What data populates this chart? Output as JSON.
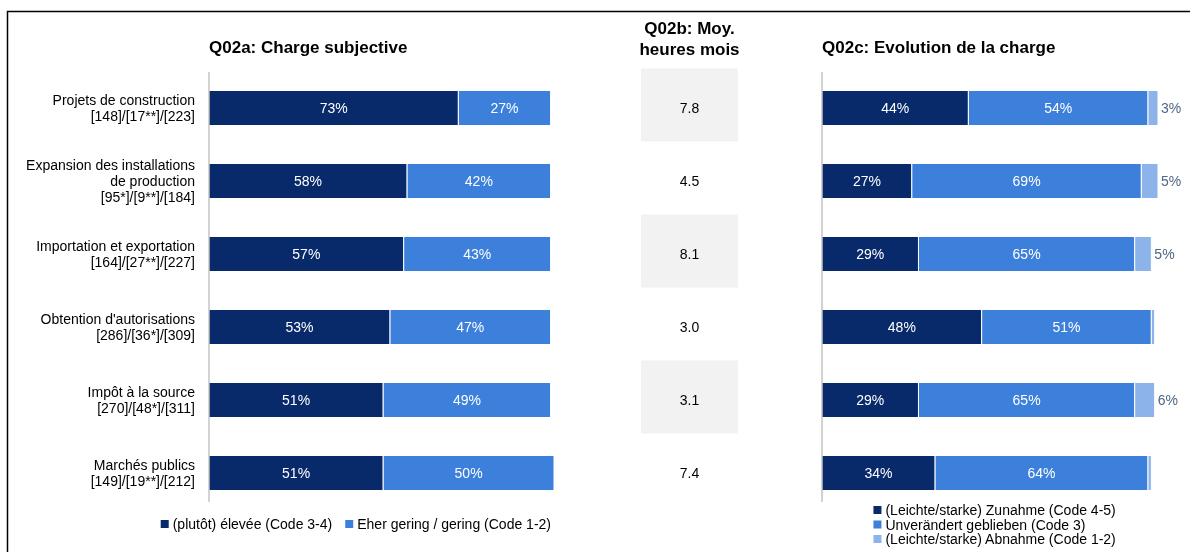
{
  "chart_data": [
    {
      "type": "bar",
      "orientation": "horizontal",
      "stacked": true,
      "title": "Q02a: Charge subjective",
      "categories": [
        "Projets de construction\n[148]/[17**]/[223]",
        "Expansion des installations\nde production\n[95*]/[9**]/[184]",
        "Importation et exportation\n[164]/[27**]/[227]",
        "Obtention d'autorisations\n[286]/[36*]/[309]",
        "Impôt à la source\n[270]/[48*]/[311]",
        "Marchés publics\n[149]/[19**]/[212]"
      ],
      "series": [
        {
          "name": "(plutôt) élevée (Code 3-4)",
          "color": "#082a6b",
          "values": [
            73,
            58,
            57,
            53,
            51,
            51
          ],
          "value_labels": [
            "73%",
            "58%",
            "57%",
            "53%",
            "51%",
            "51%"
          ]
        },
        {
          "name": "Eher gering / gering (Code 1-2)",
          "color": "#3c80dc",
          "values": [
            27,
            42,
            43,
            47,
            49,
            50
          ],
          "value_labels": [
            "27%",
            "42%",
            "43%",
            "47%",
            "49%",
            "50%"
          ]
        }
      ],
      "legend": "bottom"
    },
    {
      "type": "other",
      "title": "Q02b: Moy. heures mois",
      "values": [
        7.8,
        4.5,
        8.1,
        3.0,
        3.1,
        7.4
      ],
      "value_labels": [
        "7.8",
        "4.5",
        "8.1",
        "3.0",
        "3.1",
        "7.4"
      ],
      "colors": [
        "#f2f2f2",
        null,
        "#f2f2f2",
        null,
        "#f2f2f2",
        null
      ]
    },
    {
      "type": "bar",
      "orientation": "horizontal",
      "stacked": true,
      "title": "Q02c: Evolution de la charge",
      "series": [
        {
          "name": "(Leichte/starke) Zunahme (Code 4-5)",
          "color": "#082a6b",
          "values": [
            44,
            27,
            29,
            48,
            29,
            34
          ],
          "value_labels": [
            "44%",
            "27%",
            "29%",
            "48%",
            "29%",
            "34%"
          ]
        },
        {
          "name": "Unverändert geblieben (Code 3)",
          "color": "#3c80dc",
          "values": [
            54,
            69,
            65,
            51,
            65,
            64
          ],
          "value_labels": [
            "54%",
            "69%",
            "65%",
            "51%",
            "65%",
            "64%"
          ]
        },
        {
          "name": "(Leichte/starke) Abnahme (Code 1-2)",
          "color": "#8cb4ea",
          "values": [
            3,
            5,
            5,
            1,
            6,
            1
          ],
          "value_labels": [
            "3%",
            "5%",
            "5%",
            null,
            "6%",
            null
          ]
        }
      ],
      "legend": "bottom"
    }
  ]
}
